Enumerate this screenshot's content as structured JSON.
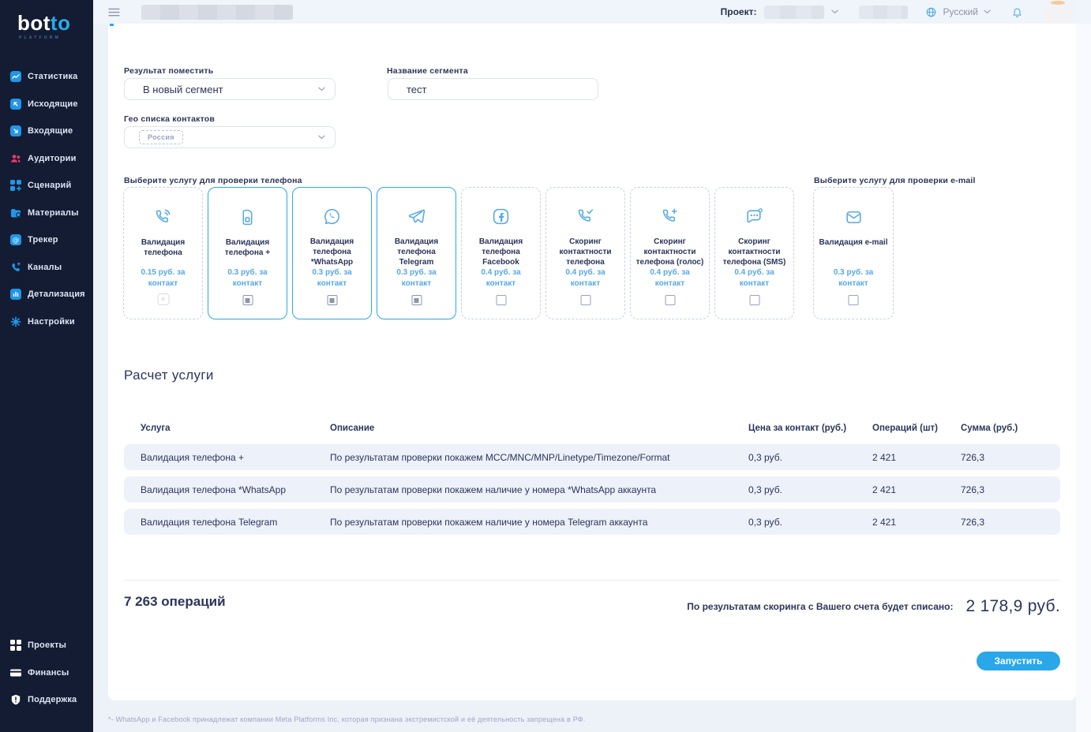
{
  "brand": {
    "logo_bot": "bot",
    "logo_to": "to",
    "platform": "PLATFORM"
  },
  "topbar": {
    "project_label": "Проект:",
    "language": "Русский"
  },
  "sidebar": {
    "items": [
      {
        "label": "Статистика",
        "icon": "stats-icon"
      },
      {
        "label": "Исходящие",
        "icon": "outgoing-icon"
      },
      {
        "label": "Входящие",
        "icon": "incoming-icon"
      },
      {
        "label": "Аудитории",
        "icon": "audiences-icon",
        "accent": "pink"
      },
      {
        "label": "Сценарий",
        "icon": "scenario-icon"
      },
      {
        "label": "Материалы",
        "icon": "materials-icon"
      },
      {
        "label": "Трекер",
        "icon": "tracker-icon"
      },
      {
        "label": "Каналы",
        "icon": "channels-icon"
      },
      {
        "label": "Детализация",
        "icon": "details-icon"
      },
      {
        "label": "Настройки",
        "icon": "settings-icon"
      }
    ],
    "bottom_items": [
      {
        "label": "Проекты",
        "icon": "projects-icon"
      },
      {
        "label": "Финансы",
        "icon": "finance-icon"
      },
      {
        "label": "Поддержка",
        "icon": "support-icon"
      }
    ]
  },
  "form": {
    "result_label": "Результат поместить",
    "result_value": "В новый сегмент",
    "segment_label": "Название сегмента",
    "segment_value": "тест",
    "geo_label": "Гео списка контактов",
    "geo_chip": "Россия"
  },
  "services": {
    "phone_label": "Выберите услугу для проверки телефона",
    "email_label": "Выберите услугу для проверки e-mail",
    "phone_cards": [
      {
        "title": "Валидация телефона",
        "price": "0.15 руб. за контакт",
        "icon": "phone-icon",
        "selected": false,
        "state": "disabled"
      },
      {
        "title": "Валидация телефона +",
        "price": "0.3 руб. за контакт",
        "icon": "sim-card-icon",
        "selected": true,
        "state": "checked"
      },
      {
        "title": "Валидация телефона *WhatsApp",
        "price": "0.3 руб. за контакт",
        "icon": "whatsapp-icon",
        "selected": true,
        "state": "checked"
      },
      {
        "title": "Валидация телефона Telegram",
        "price": "0.3 руб. за контакт",
        "icon": "telegram-icon",
        "selected": true,
        "state": "checked"
      },
      {
        "title": "Валидация телефона Facebook",
        "price": "0.4 руб. за контакт",
        "icon": "facebook-icon",
        "selected": false,
        "state": "unchecked"
      },
      {
        "title": "Скоринг контактности телефона",
        "price": "0.4 руб. за контакт",
        "icon": "phone-check-icon",
        "selected": false,
        "state": "unchecked"
      },
      {
        "title": "Скоринг контактности телефона (голос)",
        "price": "0.4 руб. за контакт",
        "icon": "phone-plus-icon",
        "selected": false,
        "state": "unchecked"
      },
      {
        "title": "Скоринг контактности телефона (SMS)",
        "price": "0.4 руб. за контакт",
        "icon": "sms-icon",
        "selected": false,
        "state": "unchecked"
      }
    ],
    "email_cards": [
      {
        "title": "Валидация e-mail",
        "price": "0.3 руб. за контакт",
        "icon": "envelope-icon",
        "selected": false,
        "state": "unchecked"
      }
    ]
  },
  "calculation": {
    "title": "Расчет услуги",
    "columns": [
      "Услуга",
      "Описание",
      "Цена за контакт (руб.)",
      "Операций (шт)",
      "Сумма (руб.)"
    ],
    "rows": [
      {
        "service": "Валидация телефона +",
        "description": "По результатам проверки покажем MCC/MNC/MNP/Linetype/Timezone/Format",
        "price": "0,3 руб.",
        "operations": "2 421",
        "sum": "726,3"
      },
      {
        "service": "Валидация телефона *WhatsApp",
        "description": "По результатам проверки покажем наличие у номера *WhatsApp аккаунта",
        "price": "0,3 руб.",
        "operations": "2 421",
        "sum": "726,3"
      },
      {
        "service": "Валидация телефона Telegram",
        "description": "По результатам проверки покажем наличие у номера Telegram аккаунта",
        "price": "0,3 руб.",
        "operations": "2 421",
        "sum": "726,3"
      }
    ],
    "total_operations": "7 263 операций",
    "writeoff_label": "По результатам скоринга с Вашего счета будет списано:",
    "writeoff_amount": "2 178,9 руб.",
    "launch_button": "Запустить"
  },
  "footer": {
    "disclaimer": "*- WhatsApp и Facebook принадлежат компании Meta Platforms Inc, которая признана экстремистской и её деятельность запрещена в РФ."
  },
  "colors": {
    "accent": "#29a9e2",
    "sidebar_bg": "#131c33",
    "pink": "#e5386d",
    "button": "#29a7e8",
    "row_bg": "#edf1fa"
  }
}
